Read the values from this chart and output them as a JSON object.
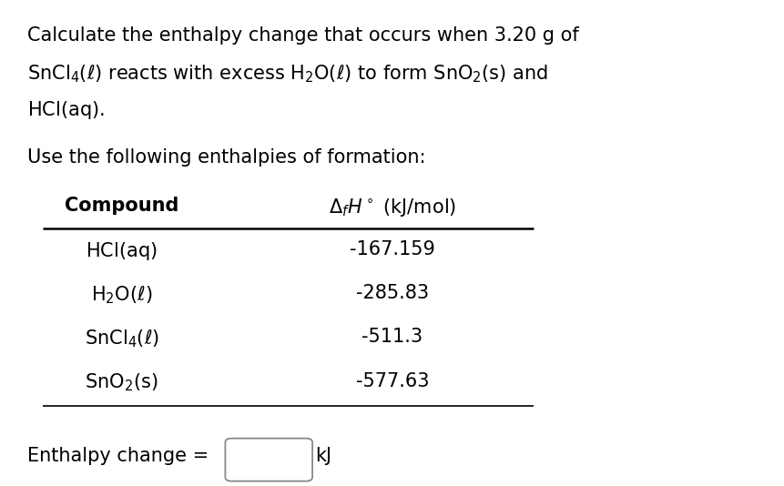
{
  "bg_color": "#ffffff",
  "line1": "Calculate the enthalpy change that occurs when 3.20 g of",
  "line2_parts": [
    "SnCl\\u2084(\\u2113) reacts with excess H\\u2082O(\\u2113) to form SnO\\u2082(s) and"
  ],
  "line3": "HCl(aq).",
  "subtitle": "Use the following enthalpies of formation:",
  "col1_header": "Compound",
  "col2_header": "\\u0394_fH\\u00b0 (kJ/mol)",
  "compounds_math": [
    "HCl(aq)",
    "H$_2$O($\\ell$)",
    "SnCl$_4$($\\ell$)",
    "SnO$_2$(s)"
  ],
  "enthalpies": [
    "-167.159",
    "-285.83",
    "-511.3",
    "-577.63"
  ],
  "footer_text": "Enthalpy change =",
  "footer_unit": "kJ",
  "fontsize": 15.0,
  "fontsize_header": 15.0
}
